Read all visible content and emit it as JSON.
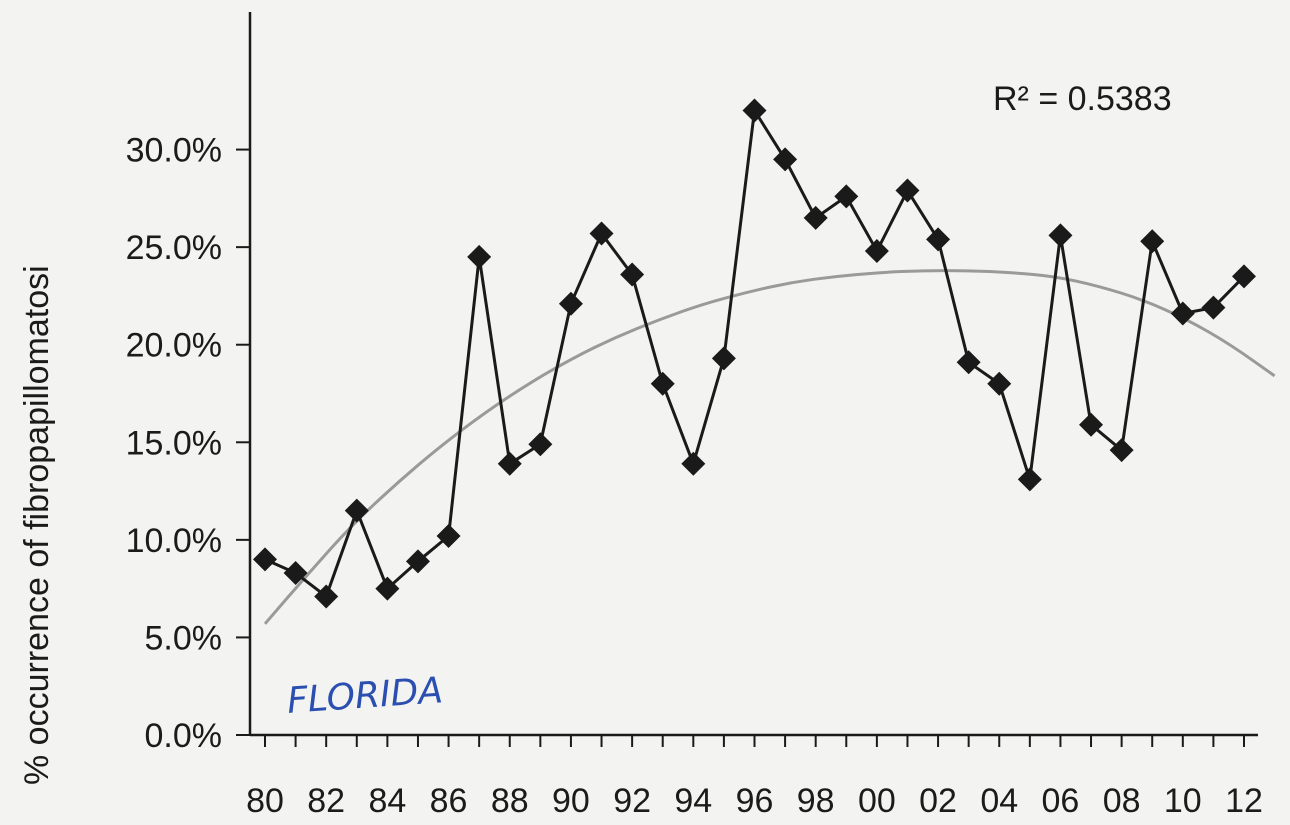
{
  "chart_data": {
    "type": "line",
    "title": "",
    "xlabel": "",
    "ylabel": "% occurrence of fibropapillomatosi",
    "x": [
      "80",
      "81",
      "82",
      "83",
      "84",
      "85",
      "86",
      "87",
      "88",
      "89",
      "90",
      "91",
      "92",
      "93",
      "94",
      "95",
      "96",
      "97",
      "98",
      "99",
      "00",
      "01",
      "02",
      "03",
      "04",
      "05",
      "06",
      "07",
      "08",
      "09",
      "10",
      "11",
      "12"
    ],
    "x_tick_labels": [
      "80",
      "82",
      "84",
      "86",
      "88",
      "90",
      "92",
      "94",
      "96",
      "98",
      "00",
      "02",
      "04",
      "06",
      "08",
      "10",
      "12"
    ],
    "y_tick_labels": [
      "0.0%",
      "5.0%",
      "10.0%",
      "15.0%",
      "20.0%",
      "25.0%",
      "30.0%"
    ],
    "ylim": [
      0,
      35
    ],
    "series": [
      {
        "values": [
          9.0,
          8.3,
          7.1,
          11.5,
          7.5,
          8.9,
          10.2,
          24.5,
          13.9,
          14.9,
          22.1,
          25.7,
          23.6,
          18.0,
          13.9,
          19.3,
          32.0,
          29.5,
          26.5,
          27.6,
          24.8,
          27.9,
          25.4,
          19.1,
          18.0,
          13.1,
          25.6,
          15.9,
          14.6,
          25.3,
          21.6,
          21.9,
          23.5
        ],
        "color": "#1a1a1a",
        "marker": "diamond"
      }
    ],
    "trendline": {
      "kind": "polynomial",
      "color": "#9a9a9a",
      "values": [
        5.7,
        8.3,
        10.8,
        12.9,
        14.8,
        16.5,
        18.0,
        19.3,
        20.4,
        21.3,
        22.1,
        22.7,
        23.2,
        23.5,
        23.7,
        23.8,
        23.8,
        23.7,
        23.5,
        23.0,
        22.3,
        21.3,
        20.0,
        18.4
      ],
      "x_start_index": 0,
      "x_end_index": 33
    },
    "annotations": {
      "r_squared": "R² = 0.5383",
      "handwritten": "FLORIDA"
    },
    "grid": false,
    "legend": "none"
  }
}
